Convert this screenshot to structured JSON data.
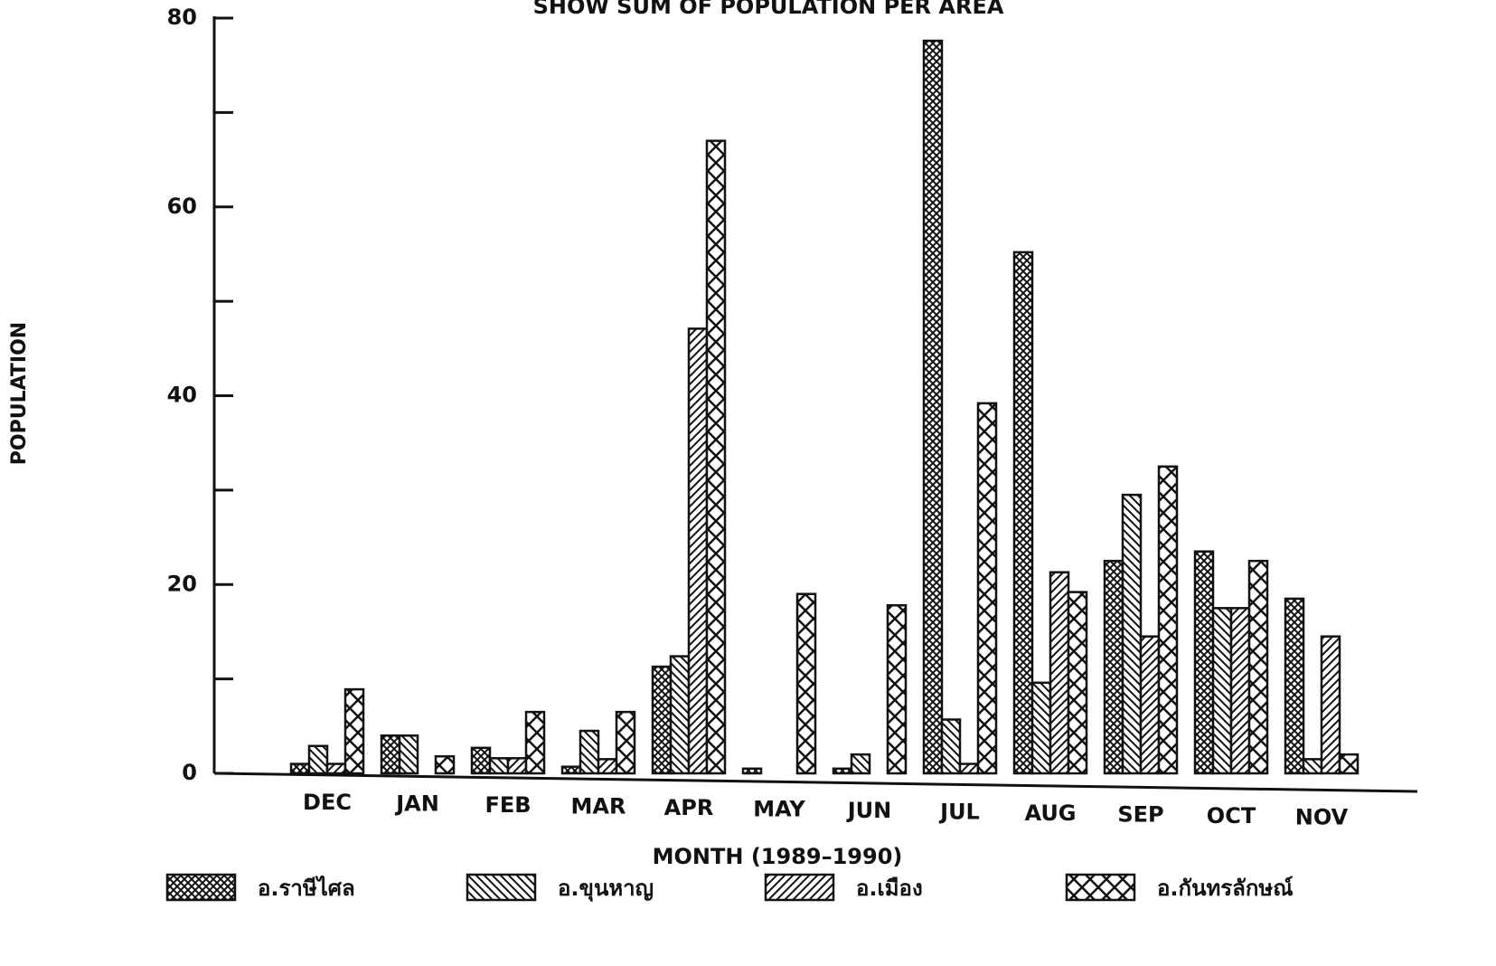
{
  "chart_data": {
    "type": "bar",
    "title": "SHOW SUM OF POPULATION PER AREA",
    "x_label": "MONTH (1989–1990)",
    "y_label": "POPULATION",
    "categories": [
      "DEC",
      "JAN",
      "FEB",
      "MAR",
      "APR",
      "MAY",
      "JUN",
      "JUL",
      "AUG",
      "SEP",
      "OCT",
      "NOV"
    ],
    "series": [
      {
        "name": "อ.ราษีไศล",
        "color": "#111111",
        "values": [
          1,
          4,
          2.7,
          0.7,
          11.3,
          0.5,
          0.5,
          77.6,
          55.2,
          22.5,
          23.5,
          18.5
        ]
      },
      {
        "name": "อ.ขุนหาญ",
        "color": "#111111",
        "values": [
          2.9,
          4,
          1.6,
          4.5,
          12.4,
          0,
          2,
          5.7,
          9.6,
          29.5,
          17.5,
          1.5
        ]
      },
      {
        "name": "อ.เมือง",
        "color": "#111111",
        "values": [
          1,
          0,
          1.6,
          1.5,
          47.1,
          0,
          0,
          1,
          21.3,
          14.5,
          17.5,
          14.5
        ]
      },
      {
        "name": "อ.กันทรลักษณ์",
        "color": "#111111",
        "values": [
          8.9,
          1.8,
          6.5,
          6.5,
          67,
          19,
          17.8,
          39.2,
          19.2,
          32.5,
          22.5,
          2
        ]
      }
    ],
    "ylim": [
      0,
      80
    ],
    "yticks": [
      0,
      20,
      40,
      60,
      80
    ],
    "minor_yticks": [
      10,
      30,
      50,
      70
    ],
    "grid": false,
    "legend": "bottom"
  }
}
